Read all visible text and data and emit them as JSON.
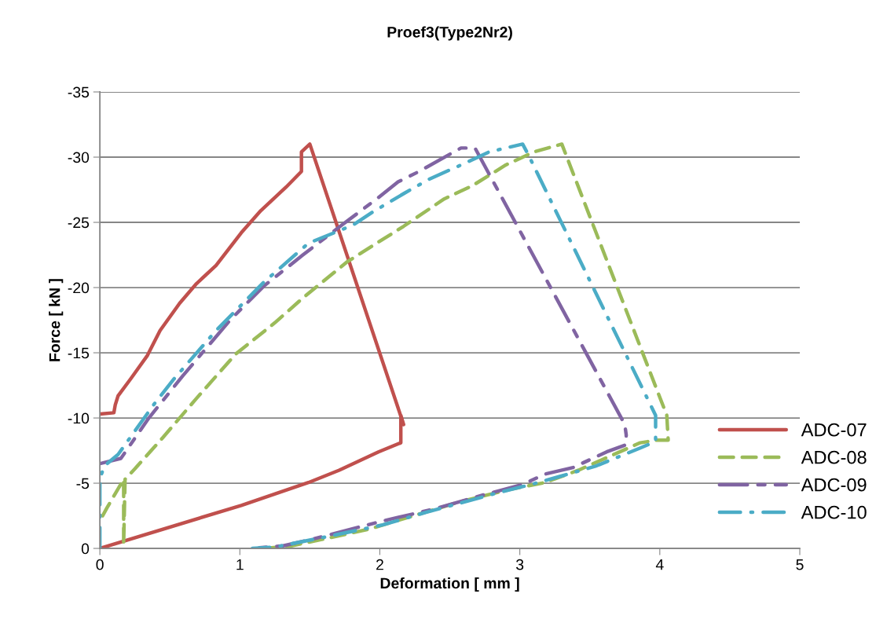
{
  "chart_data": {
    "type": "line",
    "title": "Proef3(Type2Nr2)",
    "xlabel": "Deformation [ mm ]",
    "ylabel": "Force [ kN ]",
    "xlim": [
      0,
      5
    ],
    "xticks": [
      0,
      1,
      2,
      3,
      4,
      5
    ],
    "ylim": [
      0,
      -35
    ],
    "yticks": [
      0,
      -5,
      -10,
      -15,
      -20,
      -25,
      -30,
      -35
    ],
    "grid": "y",
    "legend": "bottom right",
    "marker": "none",
    "series": [
      {
        "name": "ADC-07",
        "color": "#c0504d",
        "line_style": "solid",
        "x": [
          0,
          0.1,
          0.11,
          0.13,
          0.22,
          0.34,
          0.43,
          0.57,
          0.69,
          0.83,
          1.01,
          1.15,
          1.33,
          1.44,
          1.44,
          1.5,
          2.17,
          2.15,
          2.15,
          1.99,
          1.71,
          1.49,
          1.01,
          0
        ],
        "values": [
          -10.3,
          -10.4,
          -11,
          -11.7,
          -13,
          -14.8,
          -16.7,
          -18.8,
          -20.3,
          -21.7,
          -24.2,
          -25.9,
          -27.7,
          -28.9,
          -30.4,
          -31,
          -9.5,
          -10.2,
          -8.1,
          -7.4,
          -6,
          -5.05,
          -3.3,
          0
        ]
      },
      {
        "name": "ADC-08",
        "color": "#9bbb59",
        "line_style": "dashed",
        "x": [
          0.02,
          0.05,
          0.11,
          0.17,
          0.17,
          0.18,
          0.25,
          0.45,
          0.69,
          0.97,
          1.25,
          1.45,
          1.77,
          2.17,
          2.46,
          2.66,
          2.9,
          3.1,
          3.3,
          4.05,
          4.06,
          3.98,
          3.86,
          3.42,
          3.18,
          2.92,
          2.58,
          1.93,
          1.61,
          1.37,
          1.18
        ],
        "values": [
          -2.5,
          -3.1,
          -4.2,
          -5.3,
          -0.3,
          -5.3,
          -6.1,
          -8.5,
          -11.5,
          -14.9,
          -17.3,
          -19.2,
          -22,
          -24.7,
          -26.8,
          -27.8,
          -29.4,
          -30.4,
          -31,
          -10.2,
          -8.3,
          -8.3,
          -8.1,
          -6,
          -5.05,
          -4.5,
          -3.6,
          -1.5,
          -0.74,
          -0.2,
          0
        ]
      },
      {
        "name": "ADC-09",
        "color": "#8064a2",
        "line_style": "dashdot",
        "x": [
          0,
          0.15,
          0.35,
          0.59,
          0.93,
          1.17,
          1.45,
          1.73,
          1.99,
          2.13,
          2.28,
          2.58,
          2.68,
          3.75,
          3.76,
          3.76,
          3.62,
          3.38,
          3.18,
          3.02,
          2.74,
          2.38,
          2.0,
          1.53,
          1.31,
          1.09
        ],
        "values": [
          -6.5,
          -6.9,
          -10,
          -13.2,
          -17.5,
          -20.1,
          -22.5,
          -24.8,
          -26.9,
          -28.1,
          -28.9,
          -30.7,
          -30.7,
          -9.5,
          -8.7,
          -7.95,
          -7.4,
          -6.2,
          -5.7,
          -4.9,
          -4.1,
          -3,
          -2.05,
          -0.74,
          -0.2,
          0
        ]
      },
      {
        "name": "ADC-10",
        "color": "#4bacc6",
        "line_style": "longdashdot",
        "x": [
          0,
          0,
          0.03,
          0.13,
          0.39,
          0.53,
          0.83,
          1.17,
          1.49,
          1.81,
          1.95,
          2.17,
          2.35,
          2.58,
          2.78,
          3.02,
          3.06,
          3.97,
          3.97,
          3.86,
          3.54,
          3.28,
          3.08,
          2.82,
          2.6,
          2.34,
          2.02,
          1.65,
          1.25,
          1.09
        ],
        "values": [
          0,
          -5.3,
          -6.3,
          -7.2,
          -11.1,
          -13,
          -16.7,
          -20.4,
          -23.4,
          -24.8,
          -25.8,
          -27.2,
          -28.3,
          -29.4,
          -30.4,
          -31,
          -30.2,
          -10.2,
          -8.2,
          -7.7,
          -6.3,
          -5.5,
          -4.9,
          -4.2,
          -3.55,
          -2.8,
          -1.8,
          -0.96,
          -0.1,
          0
        ]
      }
    ]
  }
}
